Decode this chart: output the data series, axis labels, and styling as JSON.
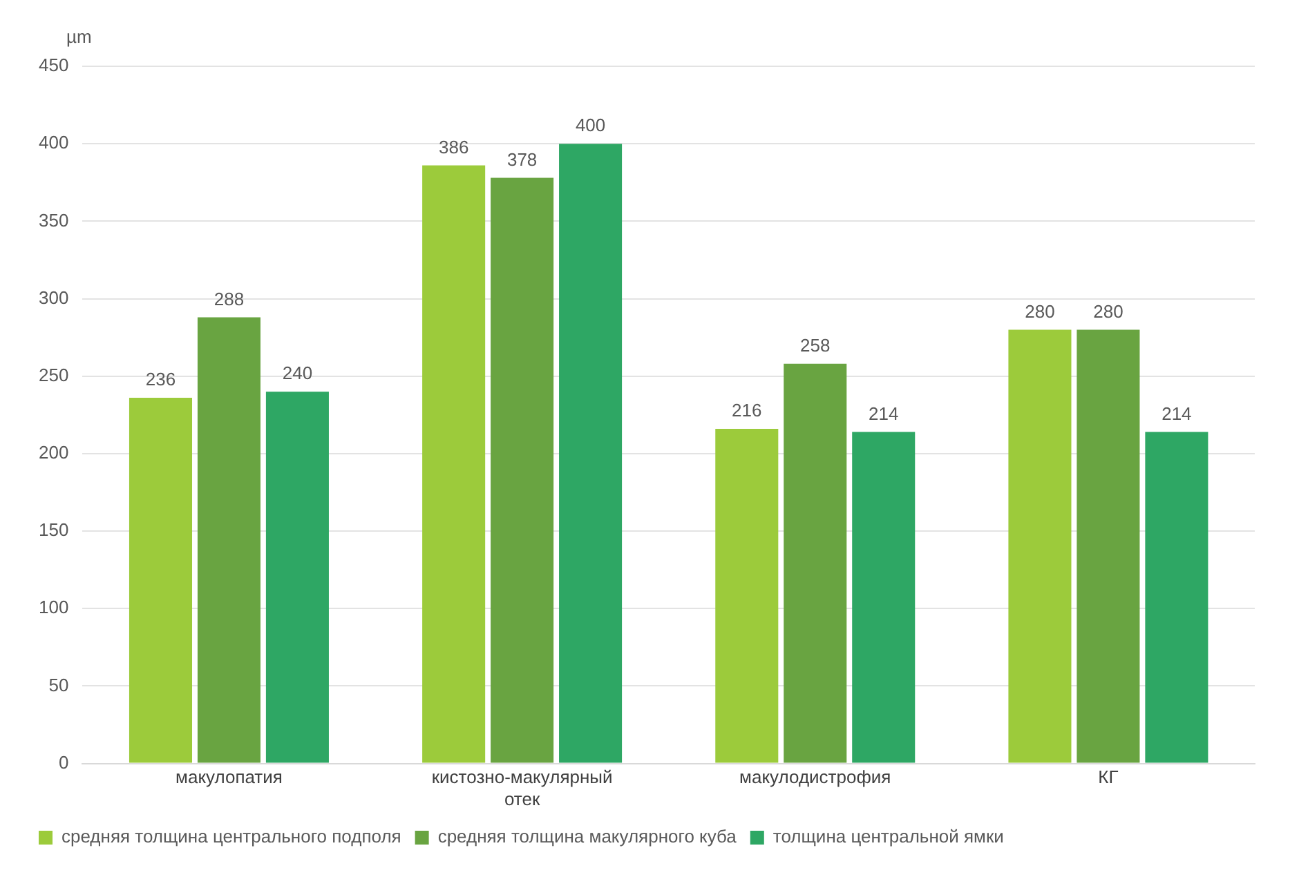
{
  "chart_data": {
    "type": "bar",
    "ylabel": "µm",
    "categories": [
      "макулопатия",
      "кистозно-макулярный отек",
      "макулодистрофия",
      "КГ"
    ],
    "series": [
      {
        "name": "средняя толщина центрального подполя",
        "color": "#9ccb3b",
        "values": [
          236,
          386,
          216,
          280
        ]
      },
      {
        "name": "средняя толщина макулярного куба",
        "color": "#69a441",
        "values": [
          288,
          378,
          258,
          280
        ]
      },
      {
        "name": "толщина центральной ямки",
        "color": "#2ea764",
        "values": [
          240,
          400,
          214,
          214
        ]
      }
    ],
    "ylim": [
      0,
      450
    ],
    "yticks": [
      0,
      50,
      100,
      150,
      200,
      250,
      300,
      350,
      400,
      450
    ],
    "grid": "y",
    "legend": "bottom",
    "data_labels": true
  }
}
